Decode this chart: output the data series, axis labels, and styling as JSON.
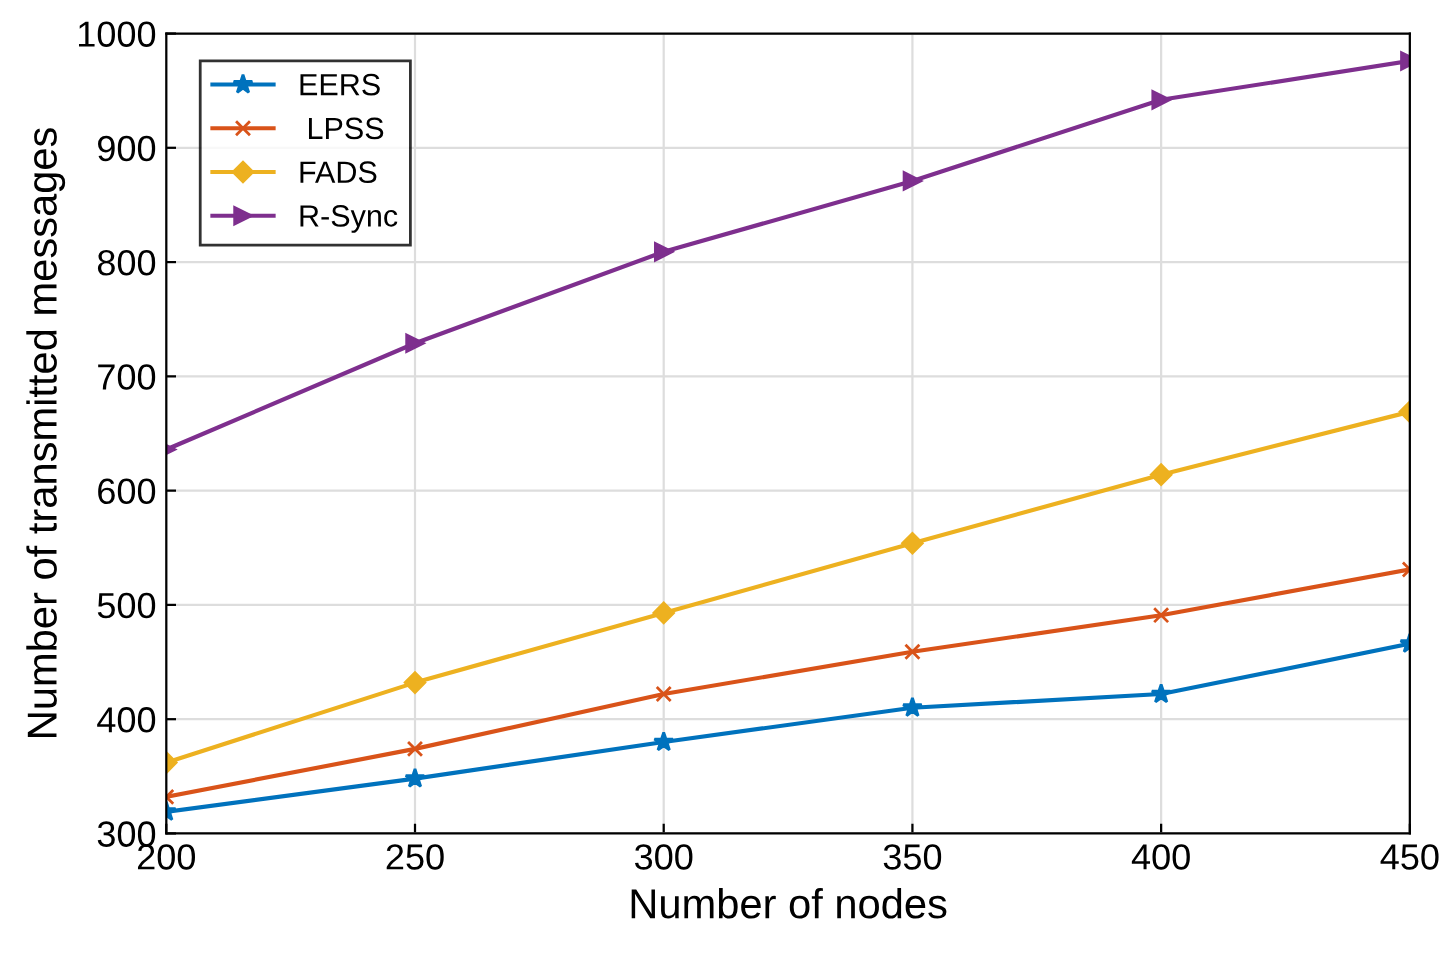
{
  "chart_data": {
    "type": "line",
    "xlabel": "Number of nodes",
    "ylabel": "Number of transmitted messages",
    "x": [
      200,
      250,
      300,
      350,
      400,
      450
    ],
    "series": [
      {
        "name": "EERS",
        "color": "#0072bd",
        "marker": "star",
        "values": [
          319,
          348,
          380,
          410,
          422,
          466
        ]
      },
      {
        "name": " LPSS",
        "color": "#d95319",
        "marker": "cross",
        "values": [
          332,
          374,
          422,
          459,
          491,
          531
        ]
      },
      {
        "name": "FADS",
        "color": "#edb120",
        "marker": "diamond",
        "values": [
          362,
          432,
          493,
          554,
          614,
          669
        ]
      },
      {
        "name": "R-Sync",
        "color": "#7e2f8e",
        "marker": "triangle",
        "values": [
          636,
          729,
          809,
          871,
          942,
          976
        ]
      }
    ],
    "xlim": [
      200,
      450
    ],
    "xticks": [
      200,
      250,
      300,
      350,
      400,
      450
    ],
    "ylim": [
      300,
      1000
    ],
    "yticks": [
      300,
      400,
      500,
      600,
      700,
      800,
      900,
      1000
    ],
    "grid": true,
    "legend": "top left",
    "line_style": "solid"
  }
}
